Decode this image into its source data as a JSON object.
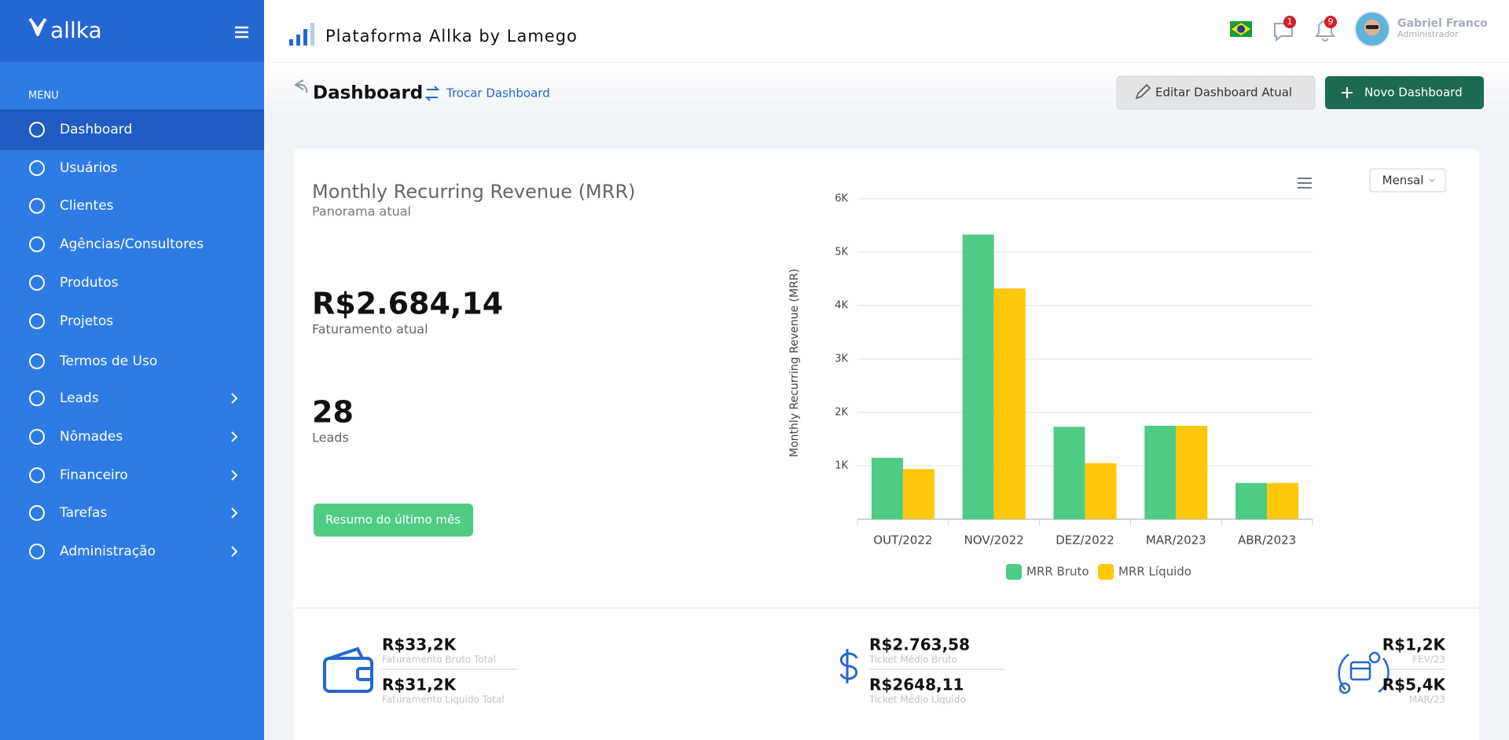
{
  "sidebar": {
    "brand": "allka",
    "menu_label": "MENU",
    "items": [
      {
        "label": "Dashboard",
        "active": true
      },
      {
        "label": "Usuários"
      },
      {
        "label": "Clientes"
      },
      {
        "label": "Agências/Consultores"
      },
      {
        "label": "Produtos"
      },
      {
        "label": "Projetos"
      },
      {
        "label": "Termos de Uso"
      },
      {
        "label": "Leads",
        "expandable": true
      },
      {
        "label": "Nômades",
        "expandable": true
      },
      {
        "label": "Financeiro",
        "expandable": true
      },
      {
        "label": "Tarefas",
        "expandable": true
      },
      {
        "label": "Administração",
        "expandable": true
      }
    ]
  },
  "header": {
    "title": "Plataforma Allka by Lamego",
    "messages_badge": 1,
    "notifications_badge": 9,
    "user_name": "Gabriel Franco",
    "user_role": "Administrador"
  },
  "toolbar": {
    "title": "Dashboard",
    "switch_link": "Trocar Dashboard",
    "edit_button": "Editar Dashboard Atual",
    "new_button": "Novo Dashboard"
  },
  "mrr_panel": {
    "title": "Monthly Recurring Revenue (MRR)",
    "subtitle": "Panorama atual",
    "revenue": "R$2.684,14",
    "revenue_label": "Faturamento atual",
    "leads": 28,
    "leads_label": "Leads",
    "button": "Resumo do último mês",
    "period_select": "Mensal"
  },
  "chart_data": {
    "type": "bar",
    "y_label": "Monthly Recurring Revenue (MRR)",
    "categories": [
      "OUT/2022",
      "NOV/2022",
      "DEZ/2022",
      "MAR/2023",
      "ABR/2023"
    ],
    "series": [
      {
        "name": "MRR Bruto",
        "color": "#4ecb85",
        "values": [
          1150,
          5330,
          1730,
          1750,
          680
        ]
      },
      {
        "name": "MRR Líquido",
        "color": "#ffc709",
        "values": [
          940,
          4320,
          1050,
          1750,
          680
        ]
      }
    ],
    "ylim": [
      0,
      6000
    ],
    "yticks": [
      {
        "value": 1000,
        "label": "1K"
      },
      {
        "value": 2000,
        "label": "2K"
      },
      {
        "value": 3000,
        "label": "3K"
      },
      {
        "value": 4000,
        "label": "4K"
      },
      {
        "value": 5000,
        "label": "5K"
      },
      {
        "value": 6000,
        "label": "6K"
      }
    ],
    "grid": true,
    "legend": "bottom"
  },
  "stats": [
    [
      {
        "value": "R$33,2K",
        "label": "Faturamento Bruto Total"
      },
      {
        "value": "R$31,2K",
        "label": "Faturamento Líquido Total"
      }
    ],
    [
      {
        "value": "R$2.763,58",
        "label": "Ticket Médio Bruto"
      },
      {
        "value": "R$2648,11",
        "label": "Ticket Médio Líquido"
      }
    ],
    [
      {
        "value": "R$1,2K",
        "label": "FEV/23"
      },
      {
        "value": "R$5,4K",
        "label": "MAR/23"
      }
    ]
  ]
}
